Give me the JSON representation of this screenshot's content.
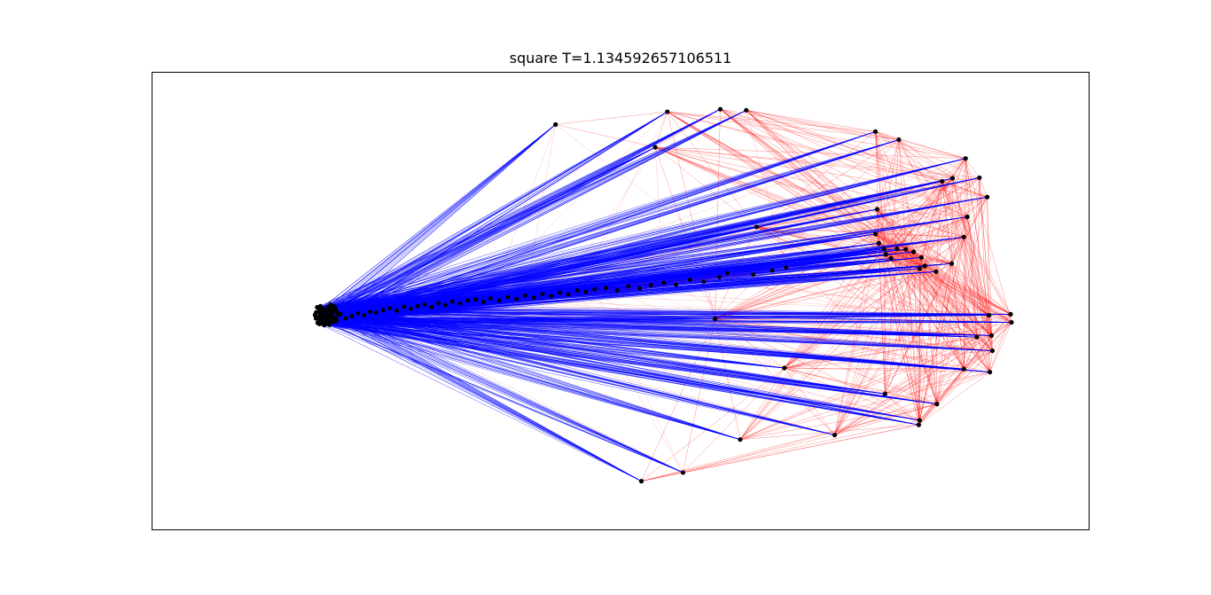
{
  "chart_data": {
    "type": "scatter",
    "title": "square T=1.134592657106511",
    "xlabel": "",
    "ylabel": "",
    "axis_ticks": false,
    "grid": false,
    "legend": "none",
    "edge_colors": {
      "positive": "#0000ff",
      "negative": "#ff0000"
    },
    "node_color": "#000000",
    "hub_node": [
      12,
      0.3
    ],
    "outer_nodes": [
      [
        38.5,
        37.8
      ],
      [
        50,
        33.3
      ],
      [
        60.5,
        40.6
      ],
      [
        57.5,
        40.8
      ],
      [
        51.4,
        40.3
      ],
      [
        75.4,
        36.4
      ],
      [
        78.1,
        34.8
      ],
      [
        85.8,
        31.1
      ],
      [
        84.3,
        27.2
      ],
      [
        87.4,
        27.3
      ],
      [
        83.1,
        26.6
      ],
      [
        86,
        19.6
      ],
      [
        88.3,
        23.5
      ],
      [
        85.6,
        15.6
      ],
      [
        84.2,
        10.4
      ],
      [
        82.4,
        8.8
      ],
      [
        80.5,
        9.4
      ],
      [
        81.1,
        9.9
      ],
      [
        80.7,
        11.6
      ],
      [
        79.8,
        12.7
      ],
      [
        78.9,
        13.2
      ],
      [
        77.9,
        13.3
      ],
      [
        77.2,
        11.4
      ],
      [
        76.6,
        12.2
      ],
      [
        76.4,
        13.3
      ],
      [
        75.8,
        14.4
      ],
      [
        75.4,
        16.2
      ],
      [
        75.6,
        21.1
      ],
      [
        61.7,
        17.6
      ],
      [
        91,
        0.4
      ],
      [
        88.5,
        0.2
      ],
      [
        91.1,
        -1.2
      ],
      [
        88.8,
        -3.8
      ],
      [
        87.1,
        -4.1
      ],
      [
        88.9,
        -6.8
      ],
      [
        85.6,
        -10.4
      ],
      [
        88.6,
        -11
      ],
      [
        76.5,
        -15.3
      ],
      [
        82.5,
        -17.3
      ],
      [
        64.9,
        -10.2
      ],
      [
        80.5,
        -20.5
      ],
      [
        80.4,
        -21.4
      ],
      [
        70.7,
        -23.4
      ],
      [
        59.8,
        -24.3
      ],
      [
        53.2,
        -30.8
      ],
      [
        48.4,
        -32.5
      ],
      [
        56.9,
        -0.5
      ]
    ],
    "chain_nodes": [
      [
        13.7,
        0.4
      ],
      [
        14.3,
        -0.4
      ],
      [
        15,
        0
      ],
      [
        15.7,
        0.6
      ],
      [
        16.4,
        0.2
      ],
      [
        17.1,
        0.9
      ],
      [
        17.8,
        0.7
      ],
      [
        18.6,
        1.2
      ],
      [
        19.4,
        1.6
      ],
      [
        20.2,
        1.1
      ],
      [
        21,
        1.9
      ],
      [
        21.8,
        1.5
      ],
      [
        22.6,
        2
      ],
      [
        23.4,
        2.3
      ],
      [
        24.2,
        1.8
      ],
      [
        25,
        2.6
      ],
      [
        25.8,
        2.2
      ],
      [
        26.6,
        2.9
      ],
      [
        27.5,
        2.5
      ],
      [
        28.4,
        3.1
      ],
      [
        29.3,
        3.3
      ],
      [
        30.2,
        2.8
      ],
      [
        31,
        3.5
      ],
      [
        32,
        3.1
      ],
      [
        33,
        3.8
      ],
      [
        34,
        3.4
      ],
      [
        35,
        4.1
      ],
      [
        36,
        3.7
      ],
      [
        37,
        4.4
      ],
      [
        38,
        4
      ],
      [
        39,
        4.7
      ],
      [
        40,
        4.3
      ],
      [
        41,
        5.1
      ],
      [
        42,
        4.8
      ],
      [
        43,
        5.3
      ],
      [
        44.3,
        5.6
      ],
      [
        45.6,
        5.1
      ],
      [
        46.9,
        5.9
      ],
      [
        48.2,
        5.5
      ],
      [
        49.5,
        6.1
      ],
      [
        51,
        6.6
      ],
      [
        52.4,
        6.2
      ],
      [
        54,
        7.2
      ],
      [
        55.6,
        6.8
      ],
      [
        57.4,
        7.7
      ],
      [
        58.3,
        8.5
      ],
      [
        61.3,
        8.2
      ],
      [
        63.5,
        9
      ],
      [
        65.1,
        9.6
      ]
    ],
    "xlim": [
      -8,
      100
    ],
    "ylim": [
      -42,
      48
    ]
  }
}
